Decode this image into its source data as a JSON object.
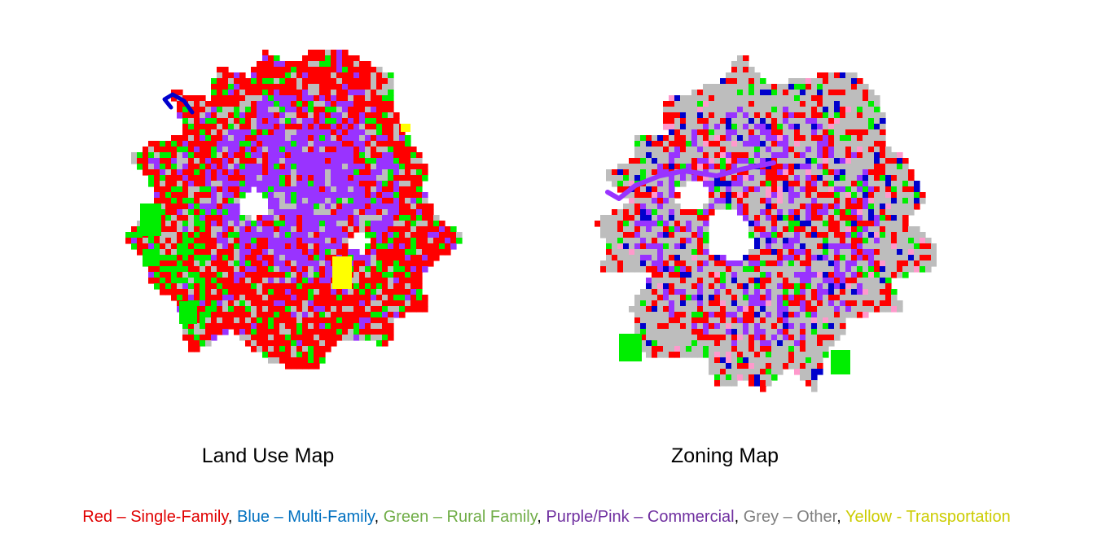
{
  "maps": [
    {
      "caption": "Land Use Map",
      "shown_categories": [
        "red",
        "blue",
        "green",
        "purple",
        "grey",
        "yellow"
      ]
    },
    {
      "caption": "Zoning Map",
      "shown_categories": [
        "red",
        "blue",
        "green",
        "purple",
        "pink",
        "grey"
      ]
    }
  ],
  "legend": {
    "items": [
      {
        "text": "Red – Single-Family",
        "color": "#e00000"
      },
      {
        "text": "Blue – Multi-Family",
        "color": "#0070c0"
      },
      {
        "text": "Green – Rural Family",
        "color": "#70ad47"
      },
      {
        "text": "Purple/Pink – Commercial",
        "color": "#7030a0"
      },
      {
        "text": "Grey – Other",
        "color": "#808080"
      },
      {
        "text": "Yellow - Transportation",
        "color": "#cccc00"
      }
    ],
    "separator": ", "
  },
  "map_colors": {
    "red": "#ff0000",
    "blue": "#0000cc",
    "green": "#00ee00",
    "purple": "#9933ff",
    "pink": "#ff99cc",
    "grey": "#bdbdbd",
    "yellow": "#ffff00"
  }
}
